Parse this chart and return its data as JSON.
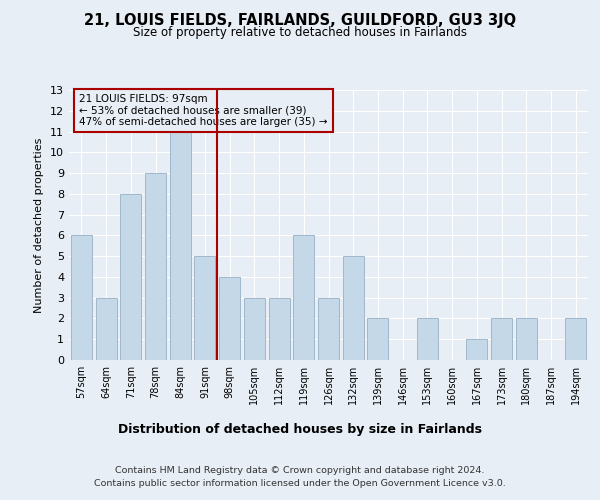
{
  "title": "21, LOUIS FIELDS, FAIRLANDS, GUILDFORD, GU3 3JQ",
  "subtitle": "Size of property relative to detached houses in Fairlands",
  "xlabel": "Distribution of detached houses by size in Fairlands",
  "ylabel": "Number of detached properties",
  "footer_line1": "Contains HM Land Registry data © Crown copyright and database right 2024.",
  "footer_line2": "Contains public sector information licensed under the Open Government Licence v3.0.",
  "annotation_line1": "21 LOUIS FIELDS: 97sqm",
  "annotation_line2": "← 53% of detached houses are smaller (39)",
  "annotation_line3": "47% of semi-detached houses are larger (35) →",
  "bar_labels": [
    "57sqm",
    "64sqm",
    "71sqm",
    "78sqm",
    "84sqm",
    "91sqm",
    "98sqm",
    "105sqm",
    "112sqm",
    "119sqm",
    "126sqm",
    "132sqm",
    "139sqm",
    "146sqm",
    "153sqm",
    "160sqm",
    "167sqm",
    "173sqm",
    "180sqm",
    "187sqm",
    "194sqm"
  ],
  "bar_values": [
    6,
    3,
    8,
    9,
    11,
    5,
    4,
    3,
    3,
    6,
    3,
    5,
    2,
    0,
    2,
    0,
    1,
    2,
    2,
    0,
    2
  ],
  "bar_color": "#c5d8e8",
  "bar_edge_color": "#a0b8cc",
  "vline_color": "#aa0000",
  "annotation_box_color": "#aa0000",
  "background_color": "#e8eef5",
  "ylim": [
    0,
    13
  ],
  "yticks": [
    0,
    1,
    2,
    3,
    4,
    5,
    6,
    7,
    8,
    9,
    10,
    11,
    12,
    13
  ]
}
